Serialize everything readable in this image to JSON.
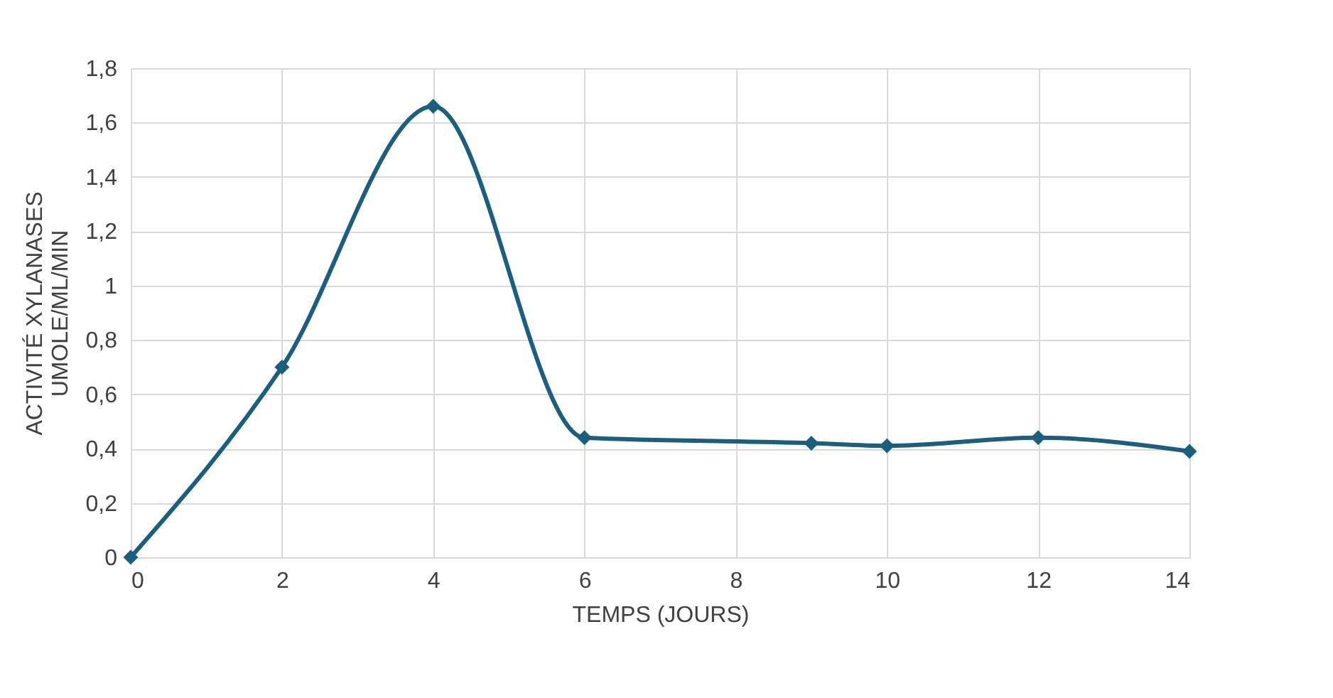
{
  "chart_data": {
    "type": "line",
    "xlabel": "TEMPS (JOURS)",
    "ylabel": "ACTIVITÉ XYLANASES\nUMOLE/ML/MIN",
    "x": [
      0,
      2,
      4,
      6,
      9,
      10,
      12,
      14
    ],
    "series": [
      {
        "color": "#1b5e7e",
        "values": [
          0,
          0.7,
          1.66,
          0.44,
          0.42,
          0.41,
          0.44,
          0.39
        ]
      }
    ],
    "xlim": [
      0,
      14
    ],
    "xticks": [
      0,
      2,
      4,
      6,
      8,
      10,
      12,
      14
    ],
    "ylim": [
      0,
      1.8
    ],
    "yticks": [
      0,
      {
        "value": 0.2,
        "label": "0,2"
      },
      {
        "value": 0.4,
        "label": "0,4"
      },
      {
        "value": 0.6,
        "label": "0,6"
      },
      {
        "value": 0.8,
        "label": "0,8"
      },
      1,
      {
        "value": 1.2,
        "label": "1,2"
      },
      {
        "value": 1.4,
        "label": "1,4"
      },
      {
        "value": 1.6,
        "label": "1,6"
      },
      {
        "value": 1.8,
        "label": "1,8"
      }
    ],
    "grid": true,
    "marker": "diamond",
    "line_style": "solid"
  }
}
